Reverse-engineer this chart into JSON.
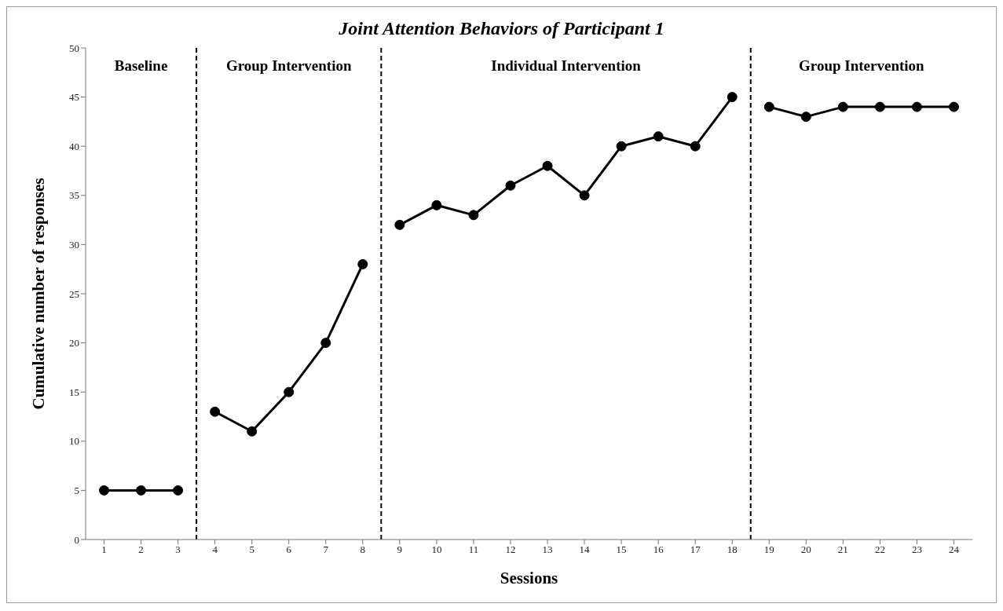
{
  "chart_data": {
    "type": "line",
    "title": "Joint Attention Behaviors of Participant 1",
    "xlabel": "Sessions",
    "ylabel": "Cumulative number of responses",
    "series": [
      {
        "color": "#000000",
        "x": [
          1,
          2,
          3
        ],
        "values": [
          5,
          5,
          5
        ]
      },
      {
        "color": "#000000",
        "x": [
          4,
          5,
          6,
          7,
          8
        ],
        "values": [
          13,
          11,
          15,
          20,
          28
        ]
      },
      {
        "color": "#000000",
        "x": [
          9,
          10,
          11,
          12,
          13,
          14,
          15,
          16,
          17,
          18
        ],
        "values": [
          32,
          34,
          33,
          36,
          38,
          35,
          40,
          41,
          40,
          45
        ]
      },
      {
        "color": "#000000",
        "x": [
          19,
          20,
          21,
          22,
          23,
          24
        ],
        "values": [
          44,
          43,
          44,
          44,
          44,
          44
        ]
      }
    ],
    "xlim": [
      0.5,
      24.5
    ],
    "xticks": [
      1,
      2,
      3,
      4,
      5,
      6,
      7,
      8,
      9,
      10,
      11,
      12,
      13,
      14,
      15,
      16,
      17,
      18,
      19,
      20,
      21,
      22,
      23,
      24
    ],
    "ylim": [
      0,
      50
    ],
    "yticks": [
      0,
      5,
      10,
      15,
      20,
      25,
      30,
      35,
      40,
      45,
      50
    ],
    "ref_lines": [
      {
        "axis": "x",
        "value": 3.5,
        "color": "#000000",
        "line_style": "dashed"
      },
      {
        "axis": "x",
        "value": 8.5,
        "color": "#000000",
        "line_style": "dashed"
      },
      {
        "axis": "x",
        "value": 18.5,
        "color": "#000000",
        "line_style": "dashed"
      }
    ],
    "annotations": [
      "Baseline",
      "Group Intervention",
      "Individual Intervention",
      "Group Intervention"
    ],
    "grid": false,
    "marker": "circle",
    "line_style": "solid"
  }
}
